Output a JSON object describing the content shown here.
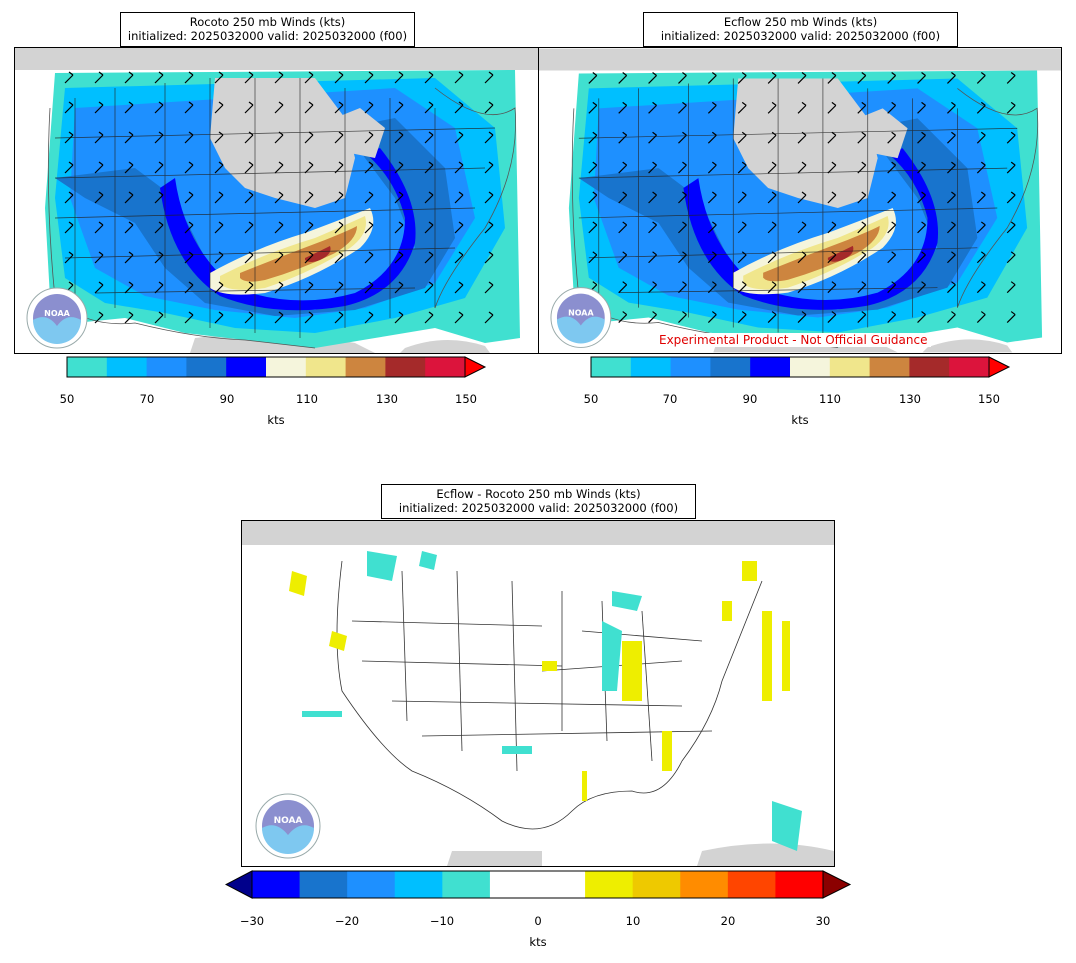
{
  "panels": [
    {
      "id": "rocoto",
      "title_line1": "Rocoto 250 mb Winds (kts)",
      "title_line2": "initialized: 2025032000 valid: 2025032000 (f00)"
    },
    {
      "id": "ecflow",
      "title_line1": "Ecflow 250 mb Winds (kts)",
      "title_line2": "initialized: 2025032000 valid: 2025032000 (f00)",
      "note": "Experimental Product - Not Official Guidance"
    },
    {
      "id": "diff",
      "title_line1": "Ecflow - Rocoto 250 mb Winds (kts)",
      "title_line2": "initialized: 2025032000 valid: 2025032000 (f00)"
    }
  ],
  "logo": {
    "text": "NOAA",
    "icon": "noaa-logo-icon"
  },
  "wind_colorbar": {
    "ticks": [
      "50",
      "70",
      "90",
      "110",
      "130",
      "150"
    ],
    "unit": "kts",
    "colors": [
      "#40e0d0",
      "#00bfff",
      "#1e90ff",
      "#1874cd",
      "#0000ff",
      "#f5f5dc",
      "#f0e68c",
      "#cd853f",
      "#a52a2a",
      "#dc143c"
    ],
    "extend_color": "#ff0000"
  },
  "diff_colorbar": {
    "ticks": [
      "−30",
      "−20",
      "−10",
      "0",
      "10",
      "20",
      "30"
    ],
    "unit": "kts",
    "colors": [
      "#0000ff",
      "#1874cd",
      "#1e90ff",
      "#00bfff",
      "#40e0d0",
      "#ffffff",
      "#ffffff",
      "#eeee00",
      "#eec900",
      "#ff8c00",
      "#ff4500",
      "#ff0000"
    ],
    "extend_low": "#00008b",
    "extend_high": "#8b0000"
  }
}
